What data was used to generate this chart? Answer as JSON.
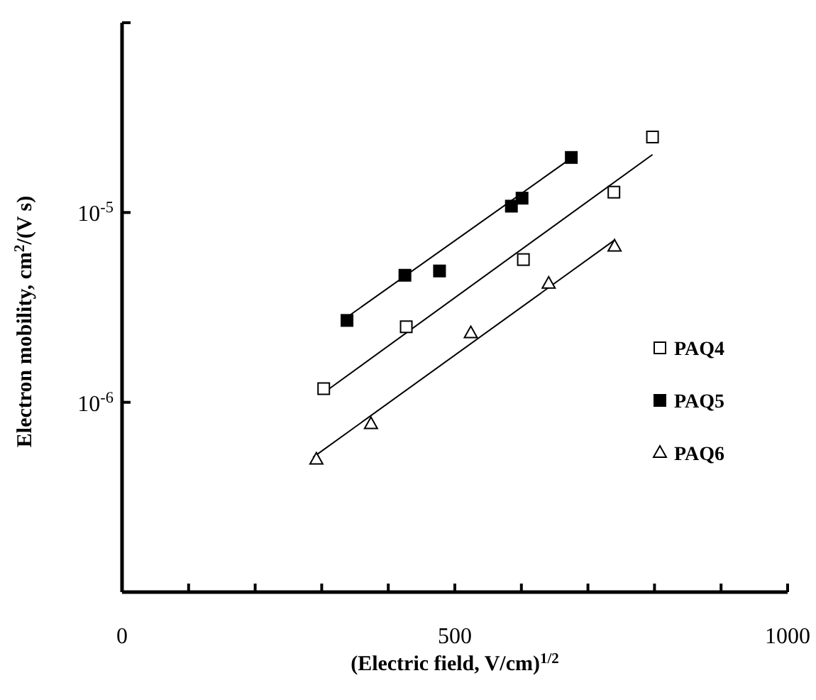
{
  "chart_data": {
    "type": "scatter",
    "xlabel": "(Electric field, V/cm)$^{1/2}$",
    "ylabel": "Electron mobility,  cm$^{2}$/(V s)",
    "xlim": [
      0,
      1000
    ],
    "xticks": [
      0,
      {
        "value": 100,
        "label": null
      },
      {
        "value": 200,
        "label": null
      },
      {
        "value": 300,
        "label": null
      },
      {
        "value": 400,
        "label": null
      },
      500,
      {
        "value": 600,
        "label": null
      },
      {
        "value": 700,
        "label": null
      },
      {
        "value": 800,
        "label": null
      },
      {
        "value": 900,
        "label": null
      },
      1000
    ],
    "ylim": [
      1e-07,
      0.0001
    ],
    "yticks": [
      {
        "value": 1e-06,
        "label": "10$^{-6}$"
      },
      {
        "value": 1e-05,
        "label": "10$^{-5}$"
      },
      {
        "value": 0.0001,
        "label": null
      }
    ],
    "log": "y",
    "grid": false,
    "legend": "right",
    "series": [
      {
        "name": "PAQ4",
        "marker": "square",
        "color": "#ffffff",
        "x": [
          303,
          427,
          603,
          739,
          797
        ],
        "values": [
          1.18e-06,
          2.5e-06,
          5.65e-06,
          1.28e-05,
          2.5e-05
        ]
      },
      {
        "name": "PAQ5",
        "marker": "square",
        "color": "#000000",
        "x": [
          338,
          425,
          477,
          585,
          601,
          675
        ],
        "values": [
          2.7e-06,
          4.67e-06,
          4.92e-06,
          1.08e-05,
          1.19e-05,
          1.95e-05
        ]
      },
      {
        "name": "PAQ6",
        "marker": "triangle",
        "color": "#ffffff",
        "x": [
          292,
          374,
          524,
          641,
          740
        ],
        "values": [
          4.98e-07,
          7.67e-07,
          2.31e-06,
          4.21e-06,
          6.61e-06
        ]
      },
      {
        "type": "line",
        "marker": "none",
        "color": "#000000",
        "x": [
          307,
          797
        ],
        "values": [
          1.15e-06,
          2.02e-05
        ]
      },
      {
        "type": "line",
        "marker": "none",
        "color": "#000000",
        "x": [
          338,
          671
        ],
        "values": [
          2.81e-06,
          1.89e-05
        ]
      },
      {
        "type": "line",
        "marker": "none",
        "color": "#000000",
        "x": [
          287,
          740
        ],
        "values": [
          5.13e-07,
          7.16e-06
        ]
      }
    ]
  }
}
